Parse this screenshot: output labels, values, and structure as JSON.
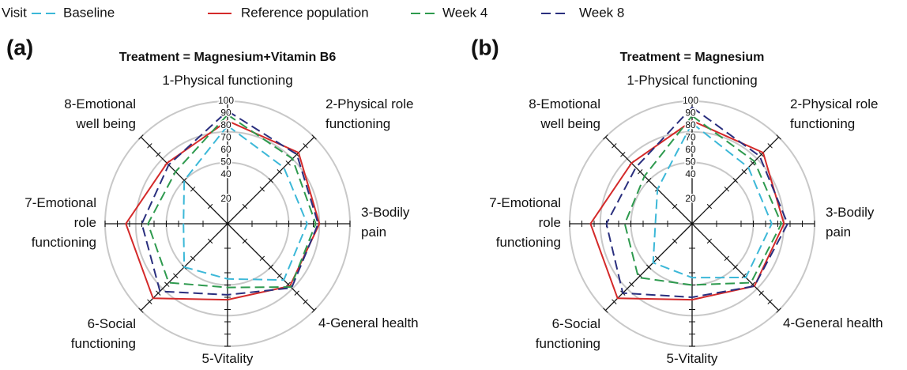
{
  "legend": {
    "title": "Visit"
  },
  "chart_data": [
    {
      "type": "radar",
      "panel": "(a)",
      "title": "Treatment = Magnesium+Vitamin B6",
      "categories": [
        [
          "1-Physical functioning"
        ],
        [
          "2-Physical role",
          "functioning"
        ],
        [
          "3-Bodily",
          "pain"
        ],
        [
          "4-General health"
        ],
        [
          "5-Vitality"
        ],
        [
          "6-Social",
          "functioning"
        ],
        [
          "7-Emotional",
          "role",
          "functioning"
        ],
        [
          "8-Emotional",
          "well being"
        ]
      ],
      "ylim": [
        0,
        100
      ],
      "yticks": [
        20,
        40,
        50,
        60,
        70,
        80,
        90,
        100
      ],
      "rings": [
        50,
        75,
        100
      ],
      "series": [
        {
          "name": "Baseline",
          "color": "#3cb8d8",
          "dashed": true,
          "values": [
            80,
            65,
            65,
            65,
            45,
            50,
            36,
            50
          ]
        },
        {
          "name": "Reference population",
          "color": "#d42a2a",
          "dashed": false,
          "values": [
            84,
            82,
            75,
            72,
            62,
            86,
            83,
            70
          ]
        },
        {
          "name": "Week 4",
          "color": "#2e9a4e",
          "dashed": true,
          "values": [
            89,
            75,
            72,
            73,
            52,
            68,
            65,
            60
          ]
        },
        {
          "name": "Week 8",
          "color": "#2a2f7e",
          "dashed": true,
          "values": [
            92,
            80,
            74,
            74,
            58,
            78,
            70,
            68
          ]
        }
      ]
    },
    {
      "type": "radar",
      "panel": "(b)",
      "title": "Treatment = Magnesium",
      "categories": [
        [
          "1-Physical functioning"
        ],
        [
          "2-Physical role",
          "functioning"
        ],
        [
          "3-Bodily",
          "pain"
        ],
        [
          "4-General health"
        ],
        [
          "5-Vitality"
        ],
        [
          "6-Social",
          "functioning"
        ],
        [
          "7-Emotional",
          "role",
          "functioning"
        ],
        [
          "8-Emotional",
          "well being"
        ]
      ],
      "ylim": [
        0,
        100
      ],
      "yticks": [
        20,
        40,
        50,
        60,
        70,
        80,
        90,
        100
      ],
      "rings": [
        50,
        75,
        100
      ],
      "series": [
        {
          "name": "Baseline",
          "color": "#3cb8d8",
          "dashed": true,
          "values": [
            82,
            65,
            65,
            62,
            44,
            45,
            30,
            40
          ]
        },
        {
          "name": "Reference population",
          "color": "#d42a2a",
          "dashed": false,
          "values": [
            84,
            82,
            75,
            72,
            62,
            86,
            83,
            70
          ]
        },
        {
          "name": "Week 4",
          "color": "#2e9a4e",
          "dashed": true,
          "values": [
            88,
            72,
            73,
            68,
            50,
            62,
            55,
            55
          ]
        },
        {
          "name": "Week 8",
          "color": "#2a2f7e",
          "dashed": true,
          "values": [
            95,
            78,
            78,
            72,
            60,
            80,
            70,
            65
          ]
        }
      ]
    }
  ]
}
